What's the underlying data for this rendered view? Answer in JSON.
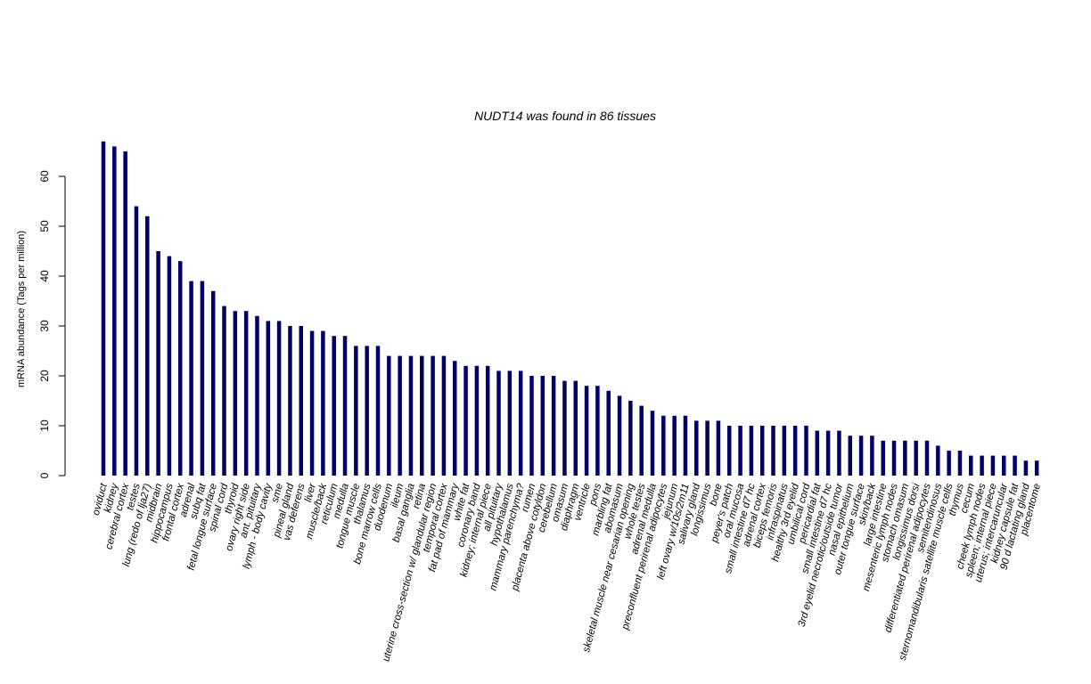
{
  "chart_data": {
    "type": "bar",
    "title": "NUDT14  was found in  86  tissues",
    "xlabel": "",
    "ylabel": "mRNA abundance (Tags per million)",
    "ylim": [
      0,
      67
    ],
    "yticks": [
      0,
      10,
      20,
      30,
      40,
      50,
      60
    ],
    "bar_color": "#000066",
    "grid": false,
    "categories": [
      "oviduct",
      "kidney",
      "cerebral cortex",
      "testes",
      "lung (redo of lja27)",
      "midbrain",
      "hippocampus",
      "frontal cortex",
      "adrenal",
      "subq fat",
      "fetal longue surface",
      "spinal cord",
      "thyroid",
      "ovary right side",
      "ant. pituitary",
      "lymph - body cavity",
      "sme",
      "pineal gland",
      "vas deferens",
      "liver",
      "muscle/back",
      "reticulum",
      "medulla",
      "tongue muscle",
      "thalamus",
      "bone marrow cells",
      "duodenum",
      "ileum",
      "basal ganglia",
      "retina",
      "uterine cross-section w/ glandular region",
      "temporal cortex",
      "fat pad of mammary",
      "white fat",
      "coronary band",
      "kidney; internal piece",
      "all pituitary",
      "hypothalamus",
      "mammary parenchyma?",
      "rumen",
      "placenta above cotyldon",
      "cerebellum",
      "omasum",
      "diaphragm",
      "ventricle",
      "pons",
      "marbling fat",
      "abomasum",
      "skeletal muscle near cesarian opening",
      "whole testes",
      "adrenal medulla",
      "preconfluent perirenal adipocytes",
      "jejunum",
      "left ovary w/10s/2m11",
      "salivary gland",
      "longissimus",
      "bone",
      "peyer's patch",
      "oral mucosa",
      "small intestine d7 hc",
      "adrenal cortex",
      "biceps femoris",
      "infraspinatus",
      "healthy 3rd eyelid",
      "umbilical cord",
      "pericardial fat",
      "small intestine d7 hc",
      "3rd eyelid necrotic/outside tumor",
      "nasal epithelium",
      "outer tongue surface",
      "skin/back",
      "large intestine",
      "mesenteric lymph nodes",
      "stomach omasum",
      "longissimus dorsi",
      "differentiated perirenal adipocytes",
      "semitendinosus",
      "sternomandibularis satellite muscle cells",
      "thymus",
      "cecum",
      "cheek lymph nodes",
      "spleen; internal piece",
      "uterus; intercaruncular",
      "kidney capsule fat",
      "90 d lactating gland",
      "placentome"
    ],
    "values": [
      67,
      66,
      65,
      54,
      52,
      45,
      44,
      43,
      39,
      39,
      37,
      34,
      33,
      33,
      32,
      31,
      31,
      30,
      30,
      29,
      29,
      28,
      28,
      26,
      26,
      26,
      24,
      24,
      24,
      24,
      24,
      24,
      23,
      22,
      22,
      22,
      21,
      21,
      21,
      20,
      20,
      20,
      19,
      19,
      18,
      18,
      17,
      16,
      15,
      14,
      13,
      12,
      12,
      12,
      11,
      11,
      11,
      10,
      10,
      10,
      10,
      10,
      10,
      10,
      10,
      9,
      9,
      9,
      8,
      8,
      8,
      7,
      7,
      7,
      7,
      7,
      6,
      5,
      5,
      4,
      4,
      4,
      4,
      4,
      3,
      3
    ]
  }
}
